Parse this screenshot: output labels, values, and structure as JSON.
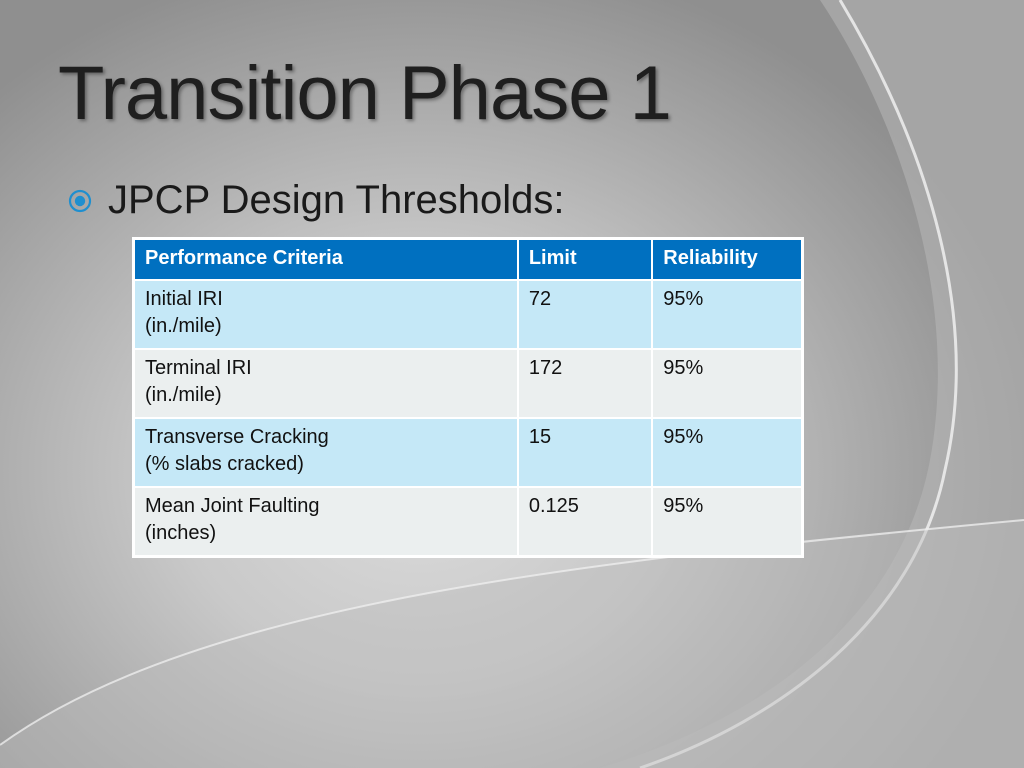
{
  "slide": {
    "title": "Transition Phase 1",
    "bullet": {
      "icon": "circled-dot-bullet-icon",
      "text": "JPCP Design Thresholds:"
    },
    "colors": {
      "header_bg": "#0070c0",
      "row_odd_bg": "#c5e8f7",
      "row_even_bg": "#ebefef",
      "bullet_icon": "#1f8fcf"
    }
  },
  "table": {
    "headers": [
      "Performance Criteria",
      "Limit",
      "Reliability"
    ],
    "rows": [
      {
        "criteria": "Initial IRI",
        "unit": "(in./mile)",
        "limit": "72",
        "reliability": "95%"
      },
      {
        "criteria": "Terminal IRI",
        "unit": "(in./mile)",
        "limit": "172",
        "reliability": "95%"
      },
      {
        "criteria": "Transverse Cracking",
        "unit": "(% slabs cracked)",
        "limit": "15",
        "reliability": "95%"
      },
      {
        "criteria": "Mean Joint Faulting",
        "unit": "(inches)",
        "limit": "0.125",
        "reliability": "95%"
      }
    ]
  }
}
